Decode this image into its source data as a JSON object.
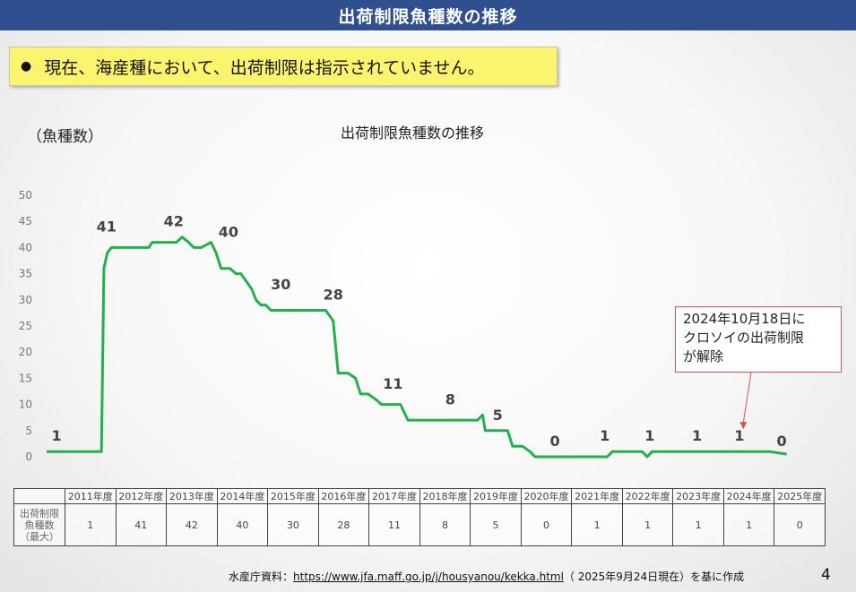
{
  "header": {
    "title": "出荷制限魚種数の推移"
  },
  "notice": {
    "bullet": "●",
    "text": "現在、海産種において、出荷制限は指示されていません。"
  },
  "chart_data": {
    "type": "line",
    "title": "出荷制限魚種数の推移",
    "ylabel": "（魚種数）",
    "ylim": [
      0,
      50
    ],
    "yticks": [
      "0",
      "5",
      "10",
      "15",
      "20",
      "25",
      "30",
      "35",
      "40",
      "45",
      "50"
    ],
    "grid": false,
    "color": "#22b14c",
    "x_domain": [
      2011.0,
      2026.0
    ],
    "series": [
      {
        "x": [
          2011.0,
          2012.1,
          2012.15,
          2012.22,
          2012.3,
          2013.05,
          2013.12,
          2013.6,
          2013.72,
          2013.85,
          2013.95,
          2014.1,
          2014.3,
          2014.4,
          2014.5,
          2014.68,
          2014.8,
          2014.9,
          2015.12,
          2015.2,
          2015.3,
          2015.4,
          2015.5,
          2015.6,
          2016.0,
          2016.1,
          2016.6,
          2016.75,
          2016.85,
          2017.05,
          2017.2,
          2017.3,
          2017.45,
          2017.6,
          2017.72,
          2017.85,
          2018.1,
          2018.25,
          2018.4,
          2018.5,
          2019.65,
          2019.75,
          2019.8,
          2020.25,
          2020.35,
          2020.55,
          2020.7,
          2020.8,
          2020.9,
          2021.0,
          2022.25,
          2022.35,
          2022.95,
          2023.05,
          2023.15,
          2023.25,
          2025.5,
          2025.85
        ],
        "y": [
          1,
          1,
          36,
          39,
          40,
          40,
          41,
          41,
          42,
          41,
          40,
          40,
          41,
          39,
          36,
          36,
          35,
          35,
          32,
          30,
          29,
          29,
          28,
          28,
          28,
          28,
          28,
          26,
          16,
          16,
          15,
          12,
          12,
          11,
          10,
          10,
          10,
          7,
          7,
          7,
          7,
          8,
          5,
          5,
          2,
          2,
          1,
          0,
          0,
          0,
          0,
          1,
          1,
          0,
          1,
          1,
          1,
          0.5
        ]
      }
    ],
    "data_labels": [
      {
        "x": 2011.2,
        "y": 1,
        "text": "1"
      },
      {
        "x": 2012.2,
        "y": 41,
        "text": "41"
      },
      {
        "x": 2013.55,
        "y": 42,
        "text": "42"
      },
      {
        "x": 2014.65,
        "y": 40,
        "text": "40"
      },
      {
        "x": 2015.7,
        "y": 30,
        "text": "30"
      },
      {
        "x": 2016.75,
        "y": 28,
        "text": "28"
      },
      {
        "x": 2017.95,
        "y": 11,
        "text": "11"
      },
      {
        "x": 2019.1,
        "y": 8,
        "text": "8"
      },
      {
        "x": 2020.05,
        "y": 5,
        "text": "5"
      },
      {
        "x": 2021.2,
        "y": 0,
        "text": "0"
      },
      {
        "x": 2022.2,
        "y": 1,
        "text": "1"
      },
      {
        "x": 2023.1,
        "y": 1,
        "text": "1"
      },
      {
        "x": 2024.05,
        "y": 1,
        "text": "1"
      },
      {
        "x": 2024.9,
        "y": 1,
        "text": "1"
      },
      {
        "x": 2025.75,
        "y": 0,
        "text": "0"
      }
    ],
    "annotation": {
      "lines": [
        "2024年10月18日に",
        "クロソイの出荷制限",
        "が解除"
      ],
      "target": {
        "x": 2024.98,
        "y": 1
      }
    }
  },
  "table": {
    "headers": [
      "2011年度",
      "2012年度",
      "2013年度",
      "2014年度",
      "2015年度",
      "2016年度",
      "2017年度",
      "2018年度",
      "2019年度",
      "2020年度",
      "2021年度",
      "2022年度",
      "2023年度",
      "2024年度",
      "2025年度"
    ],
    "row_label": [
      "出荷制限",
      "魚種数",
      "（最大）"
    ],
    "values": [
      "1",
      "41",
      "42",
      "40",
      "30",
      "28",
      "11",
      "8",
      "5",
      "0",
      "1",
      "1",
      "1",
      "1",
      "0"
    ]
  },
  "footer": {
    "prefix": "水産庁資料：",
    "url": "https://www.jfa.maff.go.jp/j/housyanou/kekka.html",
    "suffix": "（ 2025年9月24日現在）を基に作成"
  },
  "page_number": "4"
}
